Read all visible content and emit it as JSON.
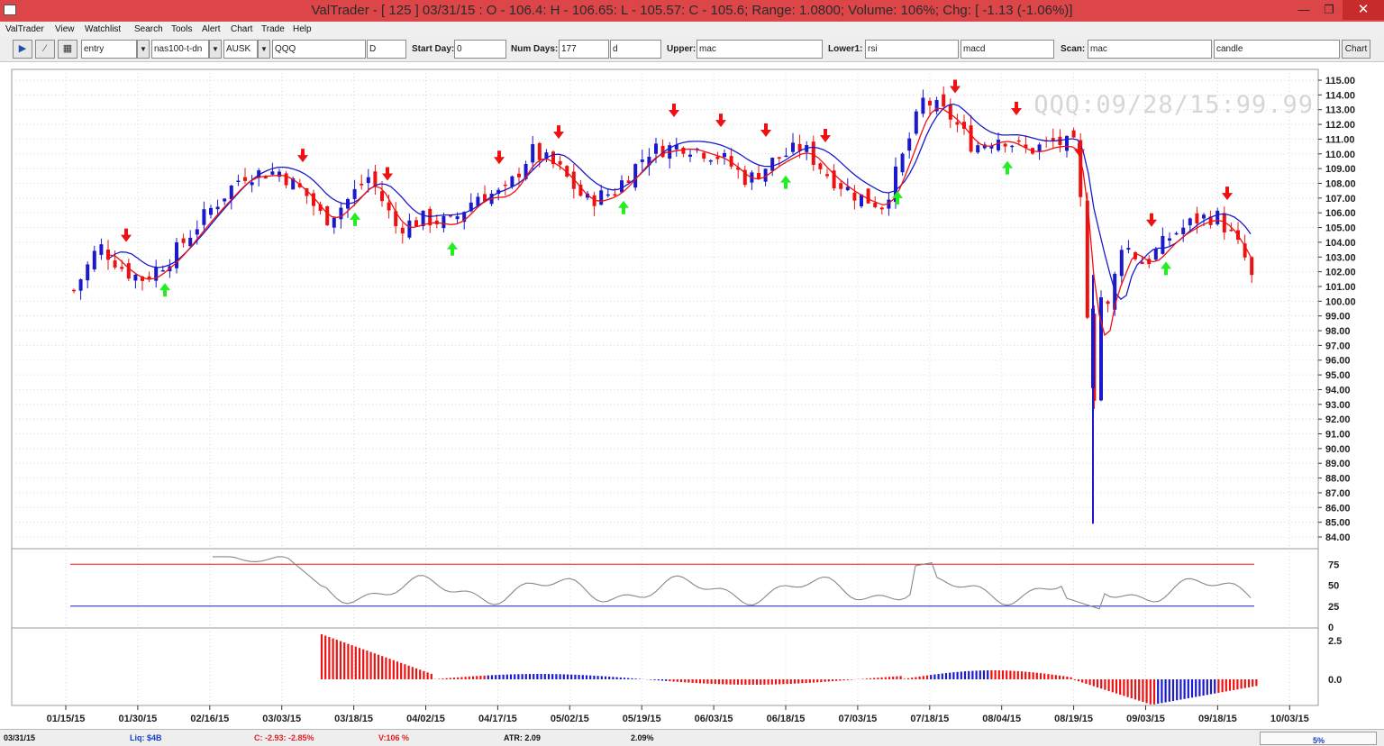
{
  "window": {
    "title": "ValTrader - [ 125 ] 03/31/15 : O - 106.4: H - 106.65: L - 105.57: C - 105.6; Range: 1.0800; Volume: 106%; Chg: [ -1.13 (-1.06%)]",
    "min_glyph": "—",
    "max_glyph": "❐",
    "close_glyph": "✕"
  },
  "menu": [
    "ValTrader",
    "View",
    "Watchlist",
    "Search",
    "Tools",
    "Alert",
    "Chart",
    "Trade",
    "Help"
  ],
  "toolbar": {
    "play_glyph": "▶",
    "line_glyph": "⁄",
    "grid_glyph": "▦",
    "dropdowns": [
      {
        "value": "entry"
      },
      {
        "value": "nas100-t-dn"
      },
      {
        "value": "AUSK"
      }
    ],
    "symbol": "QQQ",
    "period": "D",
    "start_day_label": "Start Day:",
    "start_day": "0",
    "num_days_label": "Num Days:",
    "num_days": "177",
    "num_days_unit": "d",
    "upper_label": "Upper:",
    "upper": "mac",
    "lower_label": "Lower1:",
    "lower1": "rsi",
    "lower2": "macd",
    "scan_label": "Scan:",
    "scan": "mac",
    "scan2": "candle",
    "chart_button": "Chart",
    "drop_glyph": "▼"
  },
  "chart": {
    "watermark": "QQQ:09/28/15:99.99",
    "x_ticks": [
      "01/15/15",
      "01/30/15",
      "02/16/15",
      "03/03/15",
      "03/18/15",
      "04/02/15",
      "04/17/15",
      "05/02/15",
      "05/19/15",
      "06/03/15",
      "06/18/15",
      "07/03/15",
      "07/18/15",
      "08/04/15",
      "08/19/15",
      "09/03/15",
      "09/18/15",
      "10/03/15"
    ],
    "price_ticks": [
      "115.00",
      "114.00",
      "113.00",
      "112.00",
      "111.00",
      "110.00",
      "109.00",
      "108.00",
      "107.00",
      "106.00",
      "105.00",
      "104.00",
      "103.00",
      "102.00",
      "101.00",
      "100.00",
      "99.00",
      "98.00",
      "97.00",
      "96.00",
      "95.00",
      "94.00",
      "93.00",
      "92.00",
      "91.00",
      "90.00",
      "89.00",
      "88.00",
      "87.00",
      "86.00",
      "85.00",
      "84.00"
    ],
    "rsi_ticks": [
      "75",
      "50",
      "25",
      "0"
    ],
    "macd_ticks": [
      "2.5",
      "0.0"
    ],
    "colors": {
      "up": "#1a1acc",
      "down": "#ee1111",
      "ma_fast": "#ee1111",
      "ma_slow": "#1a1acc",
      "arrow_down": "#ee1111",
      "arrow_up": "#22ee22",
      "rsi": "#888888",
      "rsi_hi": "#ee1111",
      "rsi_lo": "#1a1acc"
    }
  },
  "status": {
    "date": "03/31/15",
    "liq": "Liq: $4B",
    "change": "C: -2.93: -2.85%",
    "volume": "V:106 %",
    "atr": "ATR: 2.09",
    "atr_pct": "2.09%",
    "progress": "5%"
  }
}
